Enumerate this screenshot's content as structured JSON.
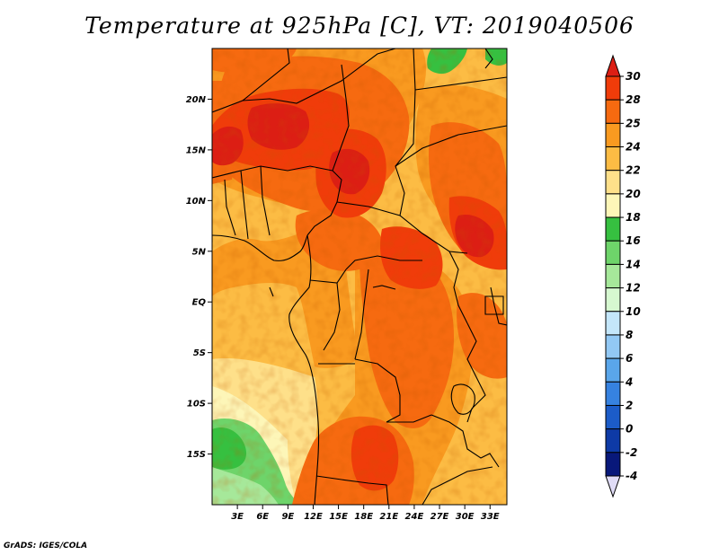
{
  "title": "Temperature at 925hPa [C], VT: 2019040506",
  "credit": "GrADS: IGES/COLA",
  "map": {
    "lon_range": [
      0,
      35
    ],
    "lat_range": [
      -20,
      25
    ],
    "lat_ticks": [
      {
        "value": 20,
        "label": "20N"
      },
      {
        "value": 15,
        "label": "15N"
      },
      {
        "value": 10,
        "label": "10N"
      },
      {
        "value": 5,
        "label": "5N"
      },
      {
        "value": 0,
        "label": "EQ"
      },
      {
        "value": -5,
        "label": "5S"
      },
      {
        "value": -10,
        "label": "10S"
      },
      {
        "value": -15,
        "label": "15S"
      }
    ],
    "lon_ticks": [
      {
        "value": 3,
        "label": "3E"
      },
      {
        "value": 6,
        "label": "6E"
      },
      {
        "value": 9,
        "label": "9E"
      },
      {
        "value": 12,
        "label": "12E"
      },
      {
        "value": 15,
        "label": "15E"
      },
      {
        "value": 18,
        "label": "18E"
      },
      {
        "value": 21,
        "label": "21E"
      },
      {
        "value": 24,
        "label": "24E"
      },
      {
        "value": 27,
        "label": "27E"
      },
      {
        "value": 30,
        "label": "30E"
      },
      {
        "value": 33,
        "label": "33E"
      }
    ]
  },
  "colorbar": {
    "labels": [
      "30",
      "28",
      "25",
      "24",
      "22",
      "20",
      "18",
      "16",
      "14",
      "12",
      "10",
      "8",
      "6",
      "4",
      "2",
      "0",
      "-2",
      "-4"
    ],
    "colors": [
      "#dc1e14",
      "#f03c0a",
      "#f66a10",
      "#f99a20",
      "#fcbc44",
      "#fee08a",
      "#fdf6b8",
      "#36c040",
      "#6ed46a",
      "#a6e89a",
      "#d6f8d0",
      "#c4e6fa",
      "#92c8f4",
      "#5aa6ea",
      "#3682e0",
      "#1c5cc8",
      "#0e3aa6",
      "#08187a",
      "#e0dcf6"
    ]
  }
}
